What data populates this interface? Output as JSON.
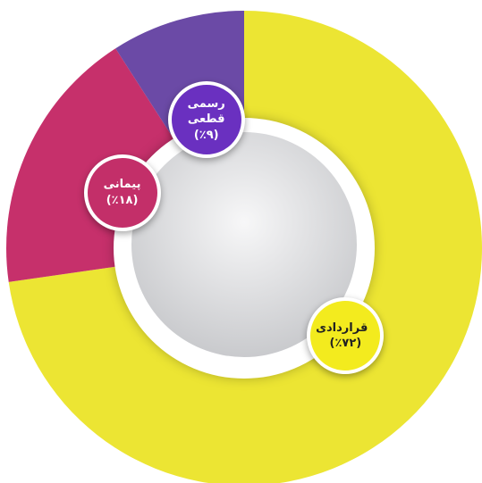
{
  "chart_data": {
    "type": "pie",
    "donut": true,
    "categories": [
      "قراردادی",
      "پیمانی",
      "رسمی قطعی"
    ],
    "values": [
      72,
      18,
      9
    ],
    "value_labels": [
      "(٪۷۲)",
      "(٪۱۸)",
      "(٪۹)"
    ],
    "colors": [
      "#ece533",
      "#c6306b",
      "#6b4aa6"
    ]
  }
}
